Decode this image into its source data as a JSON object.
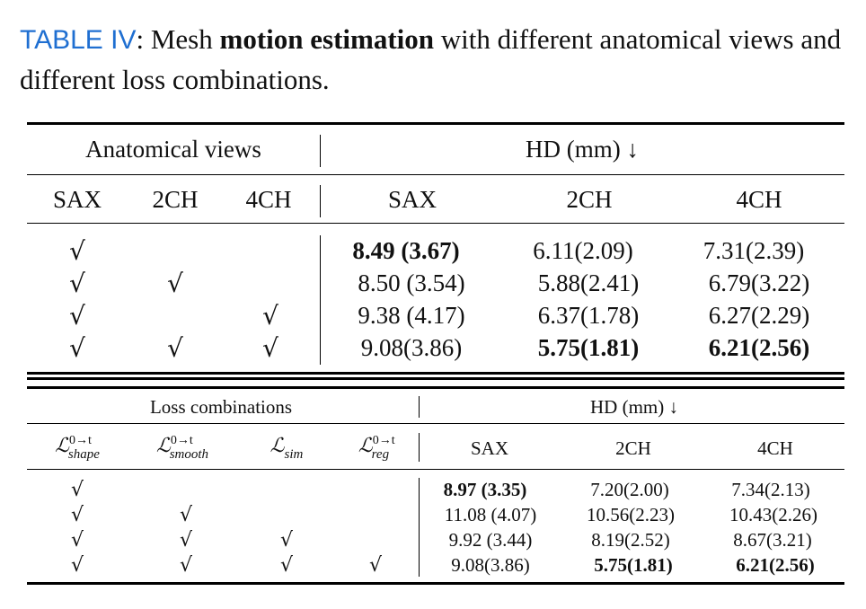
{
  "caption": {
    "label": "TABLE IV",
    "sep": ": Mesh ",
    "bold": "motion estimation",
    "rest": " with different anatomical views and different loss combinations."
  },
  "tick": "√",
  "table1": {
    "group_left": "Anatomical views",
    "group_right": "HD (mm) ↓",
    "cols": [
      "SAX",
      "2CH",
      "4CH",
      "SAX",
      "2CH",
      "4CH"
    ],
    "rows": [
      {
        "checks": [
          true,
          false,
          false
        ],
        "values": [
          "8.49 (3.67)",
          "6.11(2.09)",
          "7.31(2.39)"
        ],
        "bold": [
          true,
          false,
          false
        ]
      },
      {
        "checks": [
          true,
          true,
          false
        ],
        "values": [
          "8.50 (3.54)",
          "5.88(2.41)",
          "6.79(3.22)"
        ],
        "bold": [
          false,
          false,
          false
        ]
      },
      {
        "checks": [
          true,
          false,
          true
        ],
        "values": [
          "9.38 (4.17)",
          "6.37(1.78)",
          "6.27(2.29)"
        ],
        "bold": [
          false,
          false,
          false
        ]
      },
      {
        "checks": [
          true,
          true,
          true
        ],
        "values": [
          "9.08(3.86)",
          "5.75(1.81)",
          "6.21(2.56)"
        ],
        "bold": [
          false,
          true,
          true
        ]
      }
    ]
  },
  "table2": {
    "group_left": "Loss combinations",
    "group_right": "HD (mm) ↓",
    "loss_symbol": "ℒ",
    "loss_cols": [
      {
        "sup": "0→t",
        "sub": "shape"
      },
      {
        "sup": "0→t",
        "sub": "smooth"
      },
      {
        "sup": "",
        "sub": "sim"
      },
      {
        "sup": "0→t",
        "sub": "reg"
      }
    ],
    "cols": [
      "SAX",
      "2CH",
      "4CH"
    ],
    "rows": [
      {
        "checks": [
          true,
          false,
          false,
          false
        ],
        "values": [
          "8.97 (3.35)",
          "7.20(2.00)",
          "7.34(2.13)"
        ],
        "bold": [
          true,
          false,
          false
        ]
      },
      {
        "checks": [
          true,
          true,
          false,
          false
        ],
        "values": [
          "11.08 (4.07)",
          "10.56(2.23)",
          "10.43(2.26)"
        ],
        "bold": [
          false,
          false,
          false
        ]
      },
      {
        "checks": [
          true,
          true,
          true,
          false
        ],
        "values": [
          "9.92 (3.44)",
          "8.19(2.52)",
          "8.67(3.21)"
        ],
        "bold": [
          false,
          false,
          false
        ]
      },
      {
        "checks": [
          true,
          true,
          true,
          true
        ],
        "values": [
          "9.08(3.86)",
          "5.75(1.81)",
          "6.21(2.56)"
        ],
        "bold": [
          false,
          true,
          true
        ]
      }
    ]
  }
}
